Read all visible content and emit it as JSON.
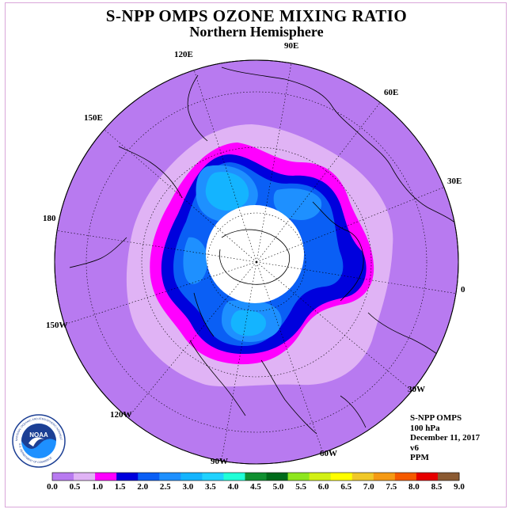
{
  "title": "S-NPP OMPS OZONE MIXING RATIO",
  "subtitle": "Northern Hemisphere",
  "longitude_labels": [
    "120E",
    "90E",
    "60E",
    "150E",
    "30E",
    "180",
    "0",
    "150W",
    "30W",
    "120W",
    "60W",
    "90W"
  ],
  "info": {
    "instrument": "S-NPP OMPS",
    "pressure": "100 hPa",
    "date": "December 11, 2017",
    "version": "v6",
    "units": "PPM"
  },
  "logo": {
    "text": "NOAA",
    "ring_text": "NATIONAL OCEANIC AND ATMOSPHERIC ADMINISTRATION",
    "ring_text_bottom": "U.S. DEPARTMENT OF COMMERCE"
  },
  "colorbar": {
    "ticks": [
      "0.0",
      "0.5",
      "1.0",
      "1.5",
      "2.0",
      "2.5",
      "3.0",
      "3.5",
      "4.0",
      "4.5",
      "5.0",
      "5.5",
      "6.0",
      "6.5",
      "7.0",
      "7.5",
      "8.0",
      "8.5",
      "9.0"
    ],
    "colors": [
      "#b87af0",
      "#e0b3f5",
      "#ff00ff",
      "#0000dd",
      "#0a5ff5",
      "#1e90ff",
      "#14b4ff",
      "#20d2ff",
      "#20ffd7",
      "#109030",
      "#006a1a",
      "#8ee61e",
      "#d2f014",
      "#ffff00",
      "#f0c828",
      "#f59a14",
      "#f55a00",
      "#e60000",
      "#8b5a32"
    ]
  },
  "colors": {
    "outer": "#b87af0",
    "lavender": "#e0b3f5",
    "magenta": "#ff00ff",
    "deep_blue": "#0000dd",
    "blue": "#0a5ff5",
    "dodger": "#1e90ff",
    "light_blue": "#14b4ff",
    "no_data": "#ffffff"
  }
}
